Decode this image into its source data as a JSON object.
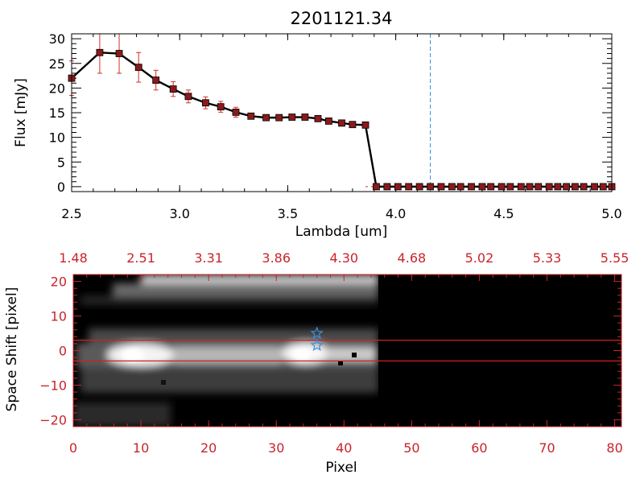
{
  "colors": {
    "axis_top": "#000000",
    "axis_bottom": "#c8242b",
    "errorbar": "#d0302a",
    "marker": "#8b1a1a",
    "vline": "#3a8fe0",
    "star": "#3a8fe0",
    "slit_line": "#d11f1f",
    "background": "#ffffff"
  },
  "chart_data": [
    {
      "type": "line",
      "title": "2201121.34",
      "xlabel": "Lambda [um]",
      "ylabel": "Flux [mJy]",
      "xlim": [
        2.5,
        5.0
      ],
      "ylim": [
        -1,
        31
      ],
      "x_ticks": [
        2.5,
        3.0,
        3.5,
        4.0,
        4.5,
        5.0
      ],
      "x_tick_labels": [
        "2.5",
        "3.0",
        "3.5",
        "4.0",
        "4.5",
        "5.0"
      ],
      "y_ticks": [
        0,
        5,
        10,
        15,
        20,
        25,
        30
      ],
      "y_tick_labels": [
        "0",
        "5",
        "10",
        "15",
        "20",
        "25",
        "30"
      ],
      "grid": false,
      "vertical_line_x": 4.16,
      "series": [
        {
          "x": [
            2.5,
            2.63,
            2.72,
            2.81,
            2.89,
            2.97,
            3.04,
            3.12,
            3.19,
            3.26,
            3.33,
            3.4,
            3.46,
            3.52,
            3.58,
            3.64,
            3.69,
            3.75,
            3.8,
            3.86,
            3.91,
            3.96,
            4.01,
            4.06,
            4.11,
            4.16,
            4.21,
            4.26,
            4.3,
            4.35,
            4.4,
            4.44,
            4.49,
            4.53,
            4.58,
            4.62,
            4.66,
            4.71,
            4.75,
            4.79,
            4.83,
            4.87,
            4.92,
            4.96,
            5.0
          ],
          "y": [
            22.0,
            27.2,
            27.0,
            24.2,
            21.6,
            19.8,
            18.3,
            17.0,
            16.2,
            15.1,
            14.3,
            14.0,
            14.0,
            14.1,
            14.1,
            13.8,
            13.3,
            12.9,
            12.6,
            12.5,
            0,
            0,
            0,
            0,
            0,
            0,
            0,
            0,
            0,
            0,
            0,
            0,
            0,
            0,
            0,
            0,
            0,
            0,
            0,
            0,
            0,
            0,
            0,
            0,
            0
          ],
          "yerr": [
            3.5,
            4.2,
            4.0,
            3.0,
            2.0,
            1.5,
            1.3,
            1.2,
            1.1,
            1.0,
            0.6,
            0.5,
            0.4,
            0.4,
            0.4,
            0.4,
            0.4,
            0.4,
            0.4,
            0.4,
            0,
            0,
            0,
            0,
            0,
            0,
            0,
            0,
            0,
            0,
            0,
            0,
            0,
            0,
            0,
            0,
            0,
            0,
            0,
            0,
            0,
            0,
            0,
            0,
            0
          ]
        }
      ]
    },
    {
      "type": "heatmap",
      "xlabel": "Pixel",
      "ylabel": "Space Shift [pixel]",
      "xlim": [
        0,
        81
      ],
      "ylim": [
        -22,
        22
      ],
      "x_ticks": [
        0,
        10,
        20,
        30,
        40,
        50,
        60,
        70,
        80
      ],
      "x_tick_labels": [
        "0",
        "10",
        "20",
        "30",
        "40",
        "50",
        "60",
        "70",
        "80"
      ],
      "y_ticks": [
        -20,
        -10,
        0,
        10,
        20
      ],
      "y_tick_labels": [
        "−20",
        "−10",
        "0",
        "10",
        "20"
      ],
      "top_tick_labels": [
        "1.48",
        "2.51",
        "3.31",
        "3.86",
        "4.30",
        "4.68",
        "5.02",
        "5.33",
        "5.55"
      ],
      "grid": false,
      "slit_lines_y": [
        3,
        -3
      ],
      "stars": [
        {
          "x": 36,
          "y": 5
        },
        {
          "x": 36,
          "y": 1.5
        }
      ]
    }
  ]
}
